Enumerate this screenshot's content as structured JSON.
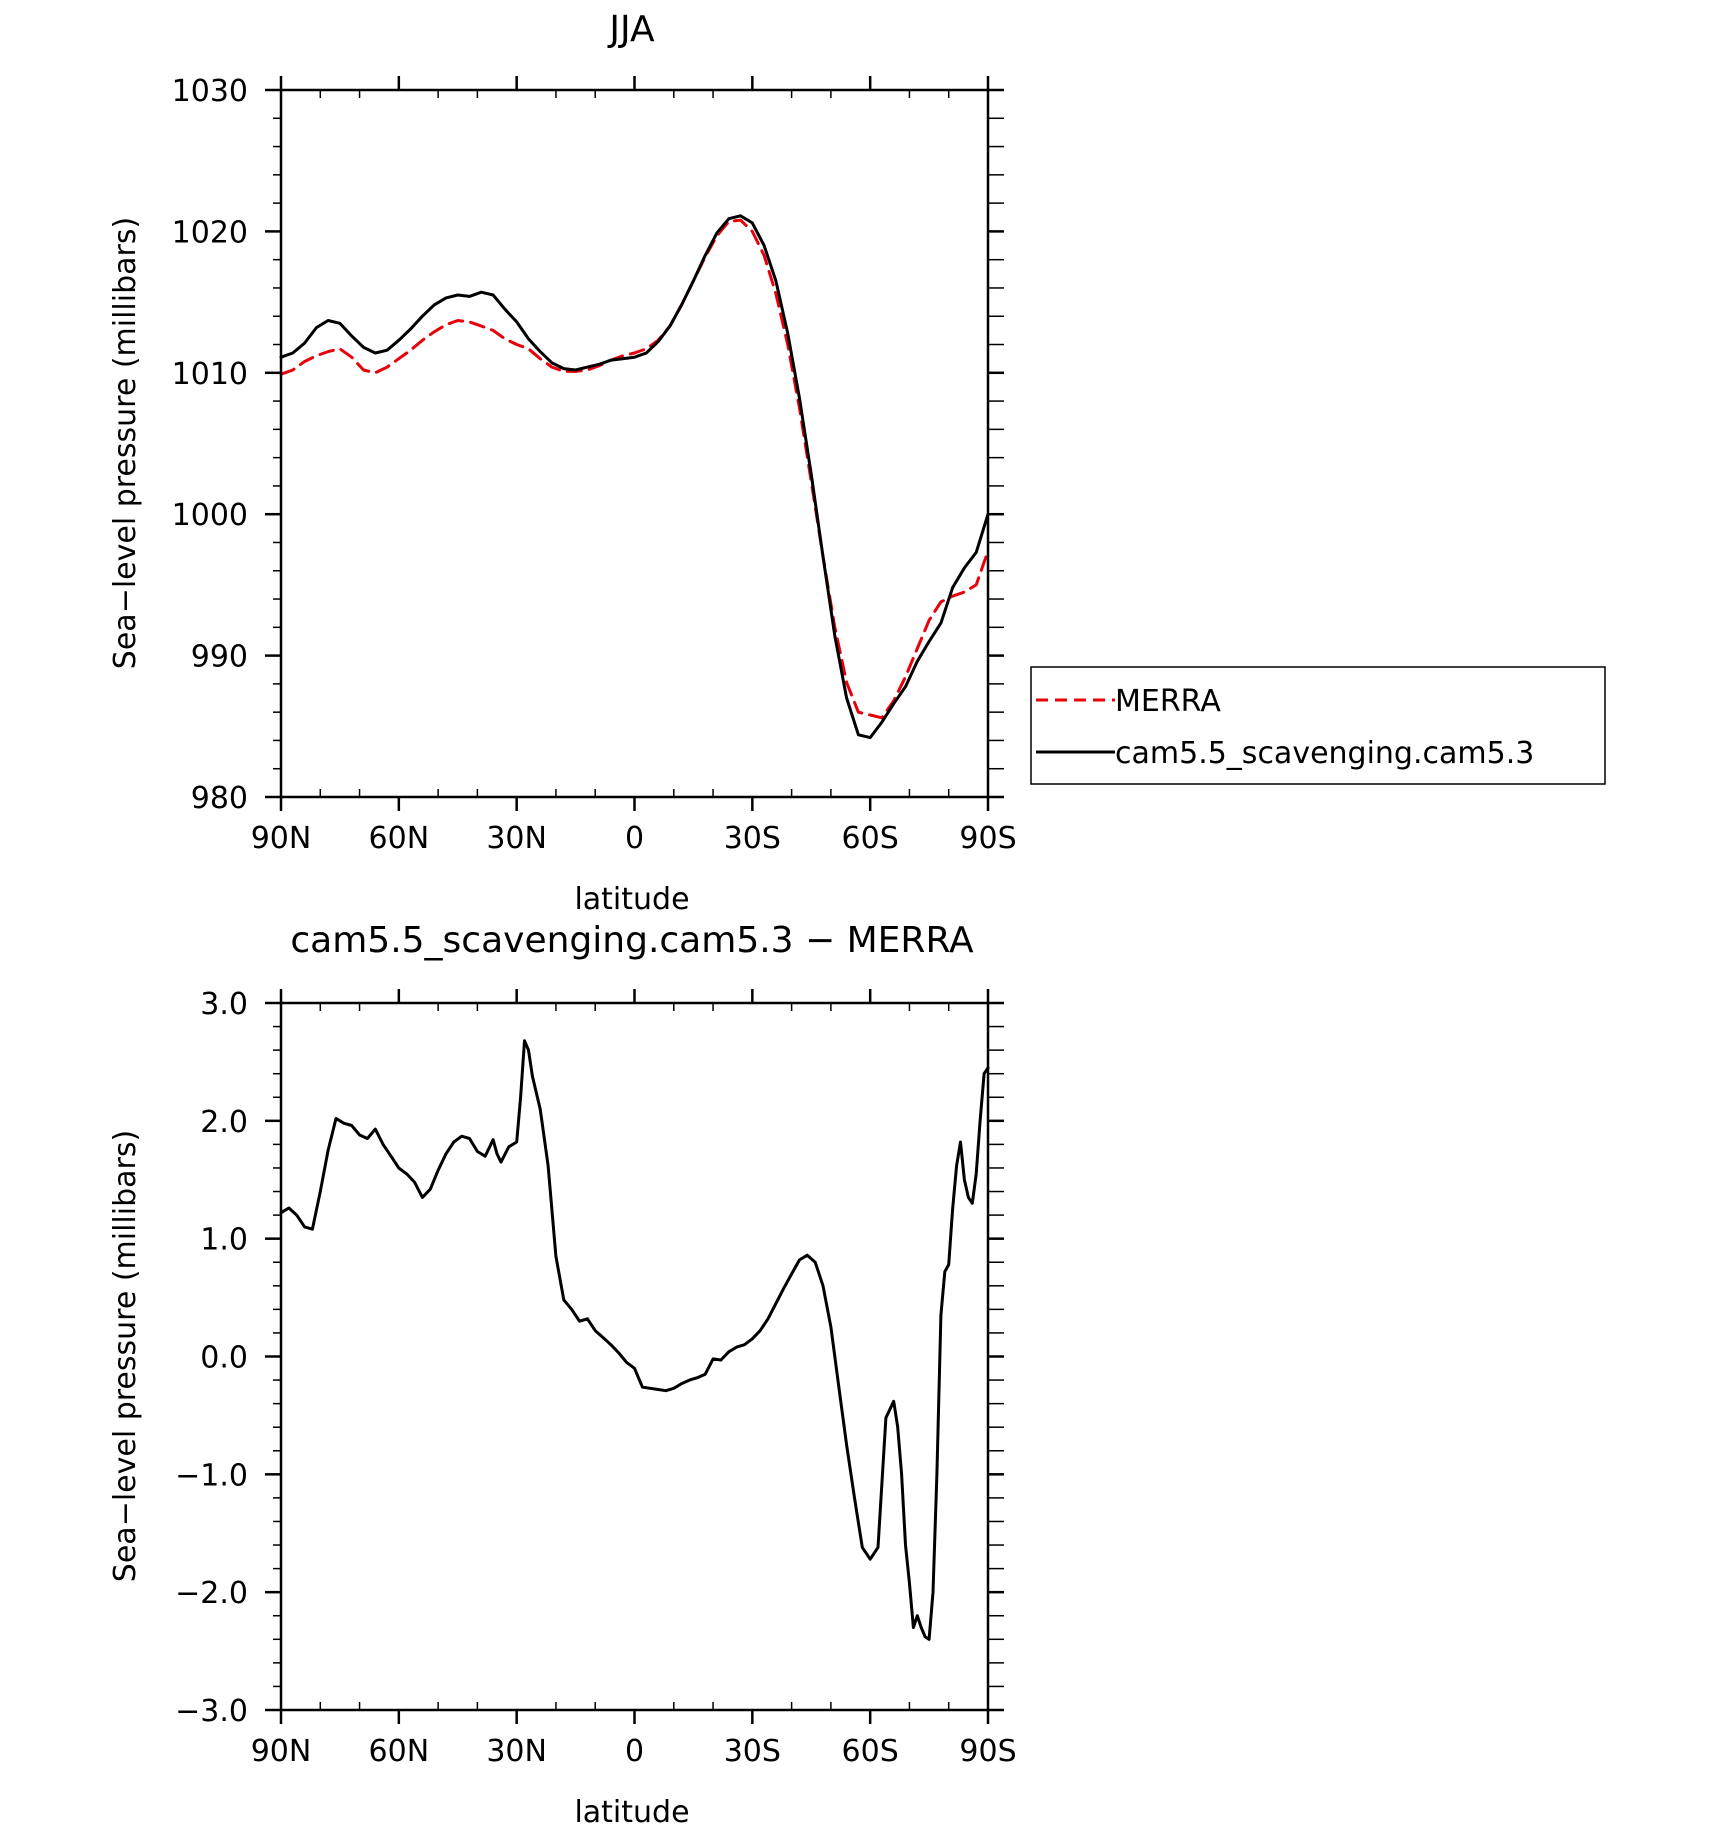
{
  "colors": {
    "merra": "#e8000b",
    "model": "#000000",
    "axis": "#000000",
    "background": "#ffffff"
  },
  "chart_data": [
    {
      "type": "line",
      "title": "JJA",
      "xlabel": "latitude",
      "ylabel": "Sea−level pressure (millibars)",
      "x_tick_labels": [
        "90N",
        "60N",
        "30N",
        "0",
        "30S",
        "60S",
        "90S"
      ],
      "y_tick_labels": [
        "980",
        "990",
        "1000",
        "1010",
        "1020",
        "1030"
      ],
      "xlim": [
        90,
        -90
      ],
      "ylim": [
        980,
        1030
      ],
      "legend": "outside-right",
      "series": [
        {
          "name": "MERRA",
          "style": "dashed",
          "color": "#e8000b",
          "x": [
            90,
            87,
            84,
            81,
            78,
            75,
            72,
            69,
            66,
            63,
            60,
            57,
            54,
            51,
            48,
            45,
            42,
            39,
            36,
            33,
            30,
            27,
            24,
            21,
            18,
            15,
            12,
            9,
            6,
            3,
            0,
            -3,
            -6,
            -9,
            -12,
            -15,
            -18,
            -21,
            -24,
            -27,
            -30,
            -33,
            -36,
            -39,
            -42,
            -45,
            -48,
            -51,
            -54,
            -57,
            -60,
            -63,
            -66,
            -69,
            -72,
            -75,
            -78,
            -81,
            -84,
            -87,
            -90
          ],
          "y": [
            1009.9,
            1010.2,
            1010.8,
            1011.2,
            1011.5,
            1011.7,
            1011.1,
            1010.2,
            1010.0,
            1010.4,
            1011.0,
            1011.6,
            1012.3,
            1012.9,
            1013.4,
            1013.7,
            1013.6,
            1013.3,
            1013.0,
            1012.4,
            1012.0,
            1011.7,
            1011.0,
            1010.4,
            1010.1,
            1010.1,
            1010.2,
            1010.5,
            1010.9,
            1011.2,
            1011.4,
            1011.7,
            1012.3,
            1013.3,
            1014.8,
            1016.5,
            1018.2,
            1019.7,
            1020.7,
            1020.8,
            1020.0,
            1018.3,
            1015.6,
            1012.0,
            1007.5,
            1002.3,
            997.0,
            992.0,
            988.1,
            986.0,
            985.8,
            985.6,
            986.8,
            988.5,
            990.5,
            992.5,
            993.8,
            994.2,
            994.5,
            995.0,
            997.4
          ]
        },
        {
          "name": "cam5.5_scavenging.cam5.3",
          "style": "solid",
          "color": "#000000",
          "x": [
            90,
            87,
            84,
            81,
            78,
            75,
            72,
            69,
            66,
            63,
            60,
            57,
            54,
            51,
            48,
            45,
            42,
            39,
            36,
            33,
            30,
            27,
            24,
            21,
            18,
            15,
            12,
            9,
            6,
            3,
            0,
            -3,
            -6,
            -9,
            -12,
            -15,
            -18,
            -21,
            -24,
            -27,
            -30,
            -33,
            -36,
            -39,
            -42,
            -45,
            -48,
            -51,
            -54,
            -57,
            -60,
            -63,
            -66,
            -69,
            -72,
            -75,
            -78,
            -81,
            -84,
            -87,
            -90
          ],
          "y": [
            1011.1,
            1011.4,
            1012.1,
            1013.2,
            1013.7,
            1013.5,
            1012.6,
            1011.8,
            1011.4,
            1011.6,
            1012.3,
            1013.1,
            1014.0,
            1014.8,
            1015.3,
            1015.5,
            1015.4,
            1015.7,
            1015.5,
            1014.5,
            1013.6,
            1012.4,
            1011.5,
            1010.7,
            1010.3,
            1010.2,
            1010.4,
            1010.6,
            1010.9,
            1011.0,
            1011.1,
            1011.4,
            1012.2,
            1013.3,
            1014.8,
            1016.5,
            1018.3,
            1019.9,
            1020.9,
            1021.1,
            1020.6,
            1019.0,
            1016.5,
            1012.8,
            1008.2,
            1002.8,
            997.0,
            991.4,
            987.0,
            984.4,
            984.2,
            985.3,
            986.6,
            987.8,
            989.6,
            991.0,
            992.3,
            994.8,
            996.2,
            997.3,
            1000.0
          ]
        }
      ]
    },
    {
      "type": "line",
      "title": "cam5.5_scavenging.cam5.3 − MERRA",
      "xlabel": "latitude",
      "ylabel": "Sea−level pressure (millibars)",
      "x_tick_labels": [
        "90N",
        "60N",
        "30N",
        "0",
        "30S",
        "60S",
        "90S"
      ],
      "y_tick_labels": [
        "−3.0",
        "−2.0",
        "−1.0",
        "0.0",
        "1.0",
        "2.0",
        "3.0"
      ],
      "xlim": [
        90,
        -90
      ],
      "ylim": [
        -3.0,
        3.0
      ],
      "series": [
        {
          "style": "solid",
          "color": "#000000",
          "x": [
            90,
            88,
            86,
            84,
            82,
            80,
            78,
            76,
            74,
            72,
            70,
            68,
            66,
            64,
            62,
            60,
            58,
            56,
            54,
            52,
            50,
            48,
            46,
            44,
            42,
            40,
            38,
            36,
            35,
            34,
            32,
            30,
            29,
            28,
            27,
            26,
            24,
            22,
            20,
            18,
            16,
            14,
            12,
            10,
            8,
            6,
            4,
            2,
            0,
            -2,
            -4,
            -6,
            -8,
            -10,
            -12,
            -14,
            -16,
            -18,
            -20,
            -22,
            -24,
            -26,
            -28,
            -30,
            -32,
            -34,
            -36,
            -38,
            -40,
            -42,
            -44,
            -46,
            -48,
            -50,
            -52,
            -54,
            -56,
            -58,
            -60,
            -62,
            -64,
            -66,
            -67,
            -68,
            -69,
            -70,
            -71,
            -72,
            -73,
            -74,
            -75,
            -76,
            -77,
            -78,
            -79,
            -80,
            -81,
            -82,
            -83,
            -84,
            -85,
            -86,
            -87,
            -88,
            -89,
            -90
          ],
          "y": [
            1.22,
            1.26,
            1.2,
            1.1,
            1.08,
            1.4,
            1.75,
            2.02,
            1.98,
            1.96,
            1.88,
            1.85,
            1.93,
            1.8,
            1.7,
            1.6,
            1.55,
            1.48,
            1.35,
            1.42,
            1.58,
            1.72,
            1.82,
            1.87,
            1.85,
            1.74,
            1.7,
            1.84,
            1.72,
            1.65,
            1.78,
            1.82,
            2.2,
            2.68,
            2.6,
            2.38,
            2.1,
            1.62,
            0.85,
            0.48,
            0.4,
            0.3,
            0.32,
            0.22,
            0.16,
            0.1,
            0.03,
            -0.05,
            -0.1,
            -0.26,
            -0.27,
            -0.28,
            -0.29,
            -0.27,
            -0.23,
            -0.2,
            -0.18,
            -0.15,
            -0.02,
            -0.03,
            0.04,
            0.08,
            0.1,
            0.15,
            0.22,
            0.32,
            0.45,
            0.58,
            0.7,
            0.82,
            0.86,
            0.8,
            0.6,
            0.25,
            -0.25,
            -0.75,
            -1.2,
            -1.62,
            -1.72,
            -1.62,
            -0.52,
            -0.38,
            -0.6,
            -1.0,
            -1.6,
            -1.92,
            -2.3,
            -2.2,
            -2.3,
            -2.38,
            -2.4,
            -2.0,
            -1.0,
            0.35,
            0.72,
            0.78,
            1.25,
            1.62,
            1.82,
            1.5,
            1.35,
            1.3,
            1.55,
            2.0,
            2.4,
            2.45
          ]
        }
      ]
    }
  ]
}
